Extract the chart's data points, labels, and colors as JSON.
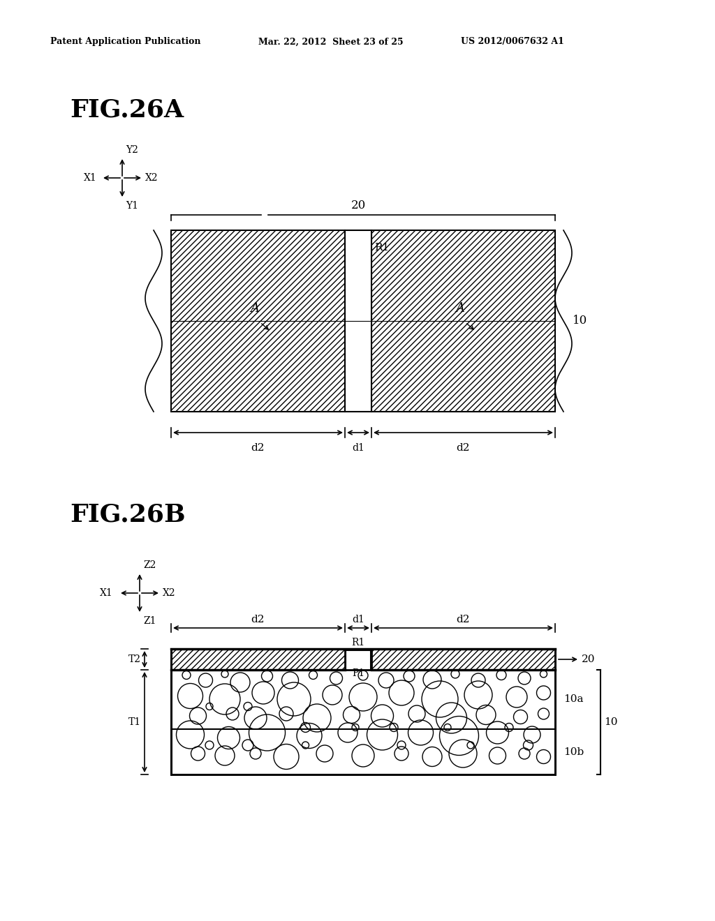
{
  "bg_color": "#ffffff",
  "header_left": "Patent Application Publication",
  "header_mid": "Mar. 22, 2012  Sheet 23 of 25",
  "header_right": "US 2012/0067632 A1",
  "fig26a_label": "FIG.26A",
  "fig26b_label": "FIG.26B"
}
